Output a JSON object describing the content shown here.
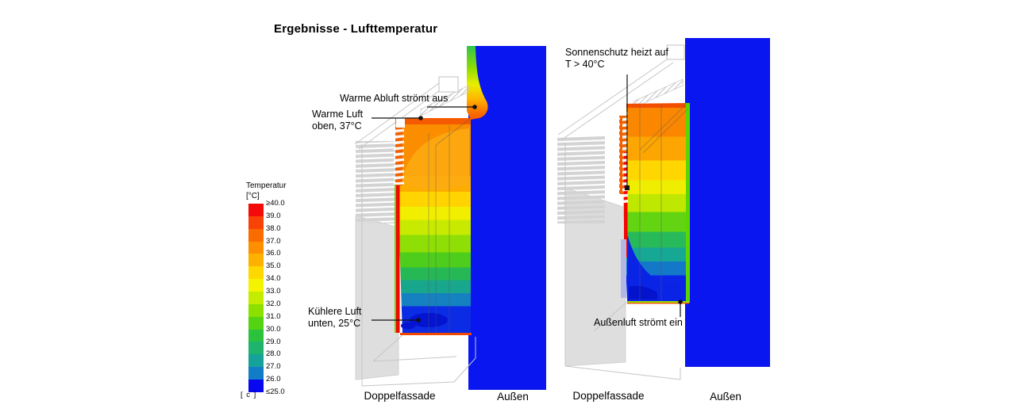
{
  "title": "Ergebnisse - Lufttemperatur",
  "legend": {
    "title": "Temperatur",
    "unit": "[°C]",
    "footnote": "[ c ]",
    "ticks": [
      "≥40.0",
      "39.0",
      "38.0",
      "37.0",
      "36.0",
      "35.0",
      "34.0",
      "33.0",
      "32.0",
      "31.0",
      "30.0",
      "29.0",
      "28.0",
      "27.0",
      "26.0",
      "≤25.0"
    ],
    "colors": [
      "#F50A0A",
      "#F94306",
      "#FB6C00",
      "#FD8F00",
      "#FEB100",
      "#FFD800",
      "#F4F400",
      "#C3EC00",
      "#8BE000",
      "#53D311",
      "#2DC23E",
      "#1EB46E",
      "#15A399",
      "#137CC6",
      "#0808F0"
    ]
  },
  "views": {
    "left": {
      "annotations": {
        "exhaust": "Warme Abluft strömt aus",
        "warm_line1": "Warme Luft",
        "warm_line2": "oben, 37°C",
        "cool_line1": "Kühlere Luft",
        "cool_line2": "unten, 25°C"
      },
      "label_facade": "Doppelfassade",
      "label_outside": "Außen"
    },
    "right": {
      "annotations": {
        "shade_line1": "Sonnenschutz heizt auf",
        "shade_line2": "T > 40°C",
        "inflow": "Außenluft strömt ein"
      },
      "label_facade": "Doppelfassade",
      "label_outside": "Außen"
    }
  },
  "colors": {
    "outside_air_blue": "#0A16F0",
    "hot_red": "#F50500"
  }
}
